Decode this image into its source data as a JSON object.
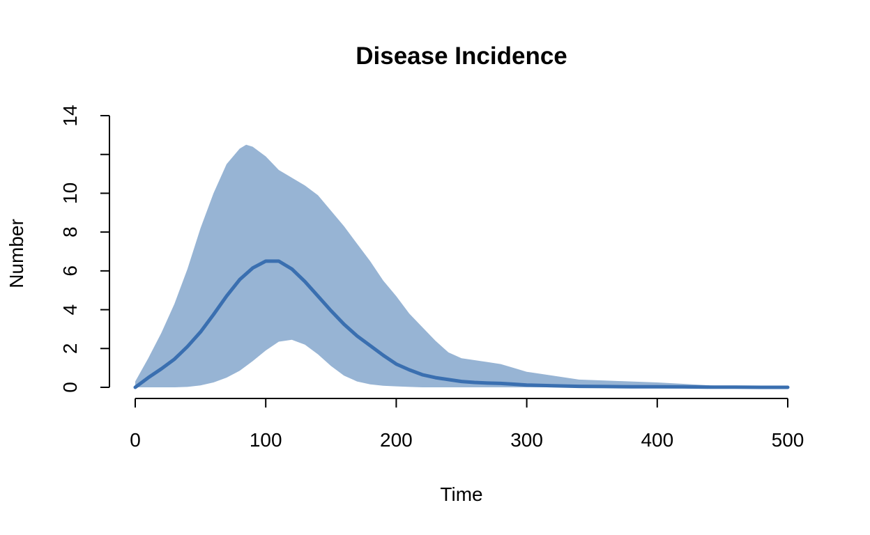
{
  "chart_data": {
    "type": "area",
    "title": "Disease Incidence",
    "xlabel": "Time",
    "ylabel": "Number",
    "xlim": [
      0,
      500
    ],
    "ylim": [
      0,
      14
    ],
    "x_ticks": [
      0,
      100,
      200,
      300,
      400,
      500
    ],
    "x_tick_labels": [
      "0",
      "100",
      "200",
      "300",
      "400",
      "500"
    ],
    "y_ticks": [
      0,
      2,
      4,
      6,
      8,
      10,
      12,
      14
    ],
    "y_tick_labels": [
      "0",
      "2",
      "4",
      "6",
      "8",
      "10",
      "",
      "14"
    ],
    "grid": false,
    "band": {
      "x": [
        0,
        10,
        20,
        30,
        40,
        50,
        60,
        70,
        80,
        85,
        90,
        100,
        110,
        120,
        130,
        140,
        150,
        160,
        170,
        180,
        190,
        200,
        210,
        220,
        230,
        240,
        250,
        260,
        270,
        280,
        290,
        300,
        320,
        340,
        360,
        380,
        400,
        420,
        440,
        460,
        480,
        500
      ],
      "upper": [
        0.3,
        1.5,
        2.8,
        4.3,
        6.1,
        8.2,
        10.0,
        11.5,
        12.3,
        12.5,
        12.4,
        11.9,
        11.2,
        10.8,
        10.4,
        9.9,
        9.1,
        8.3,
        7.4,
        6.5,
        5.5,
        4.7,
        3.8,
        3.1,
        2.4,
        1.8,
        1.5,
        1.4,
        1.3,
        1.2,
        1.0,
        0.8,
        0.6,
        0.4,
        0.35,
        0.3,
        0.25,
        0.18,
        0.1,
        0.05,
        0.02,
        0.0
      ],
      "lower": [
        0,
        0,
        0,
        0,
        0.02,
        0.1,
        0.25,
        0.5,
        0.85,
        1.1,
        1.35,
        1.9,
        2.35,
        2.45,
        2.2,
        1.7,
        1.1,
        0.6,
        0.3,
        0.15,
        0.08,
        0.05,
        0.02,
        0,
        0,
        0,
        0,
        0,
        0,
        0,
        0,
        0,
        0,
        0,
        0,
        0,
        0,
        0,
        0,
        0,
        0,
        0
      ],
      "color": "#97b4d4"
    },
    "series": [
      {
        "x": [
          0,
          10,
          20,
          30,
          40,
          50,
          60,
          70,
          80,
          90,
          100,
          110,
          120,
          130,
          140,
          150,
          160,
          170,
          180,
          190,
          200,
          210,
          220,
          230,
          240,
          250,
          260,
          270,
          280,
          290,
          300,
          320,
          340,
          360,
          380,
          400,
          420,
          440,
          460,
          480,
          500
        ],
        "values": [
          0,
          0.5,
          0.95,
          1.45,
          2.1,
          2.85,
          3.75,
          4.7,
          5.55,
          6.15,
          6.5,
          6.5,
          6.1,
          5.45,
          4.7,
          3.95,
          3.25,
          2.65,
          2.15,
          1.65,
          1.2,
          0.9,
          0.65,
          0.5,
          0.4,
          0.3,
          0.25,
          0.22,
          0.2,
          0.16,
          0.12,
          0.08,
          0.05,
          0.04,
          0.03,
          0.03,
          0.02,
          0.01,
          0.01,
          0.0,
          0.0
        ],
        "color": "#3a6fb0"
      }
    ]
  }
}
